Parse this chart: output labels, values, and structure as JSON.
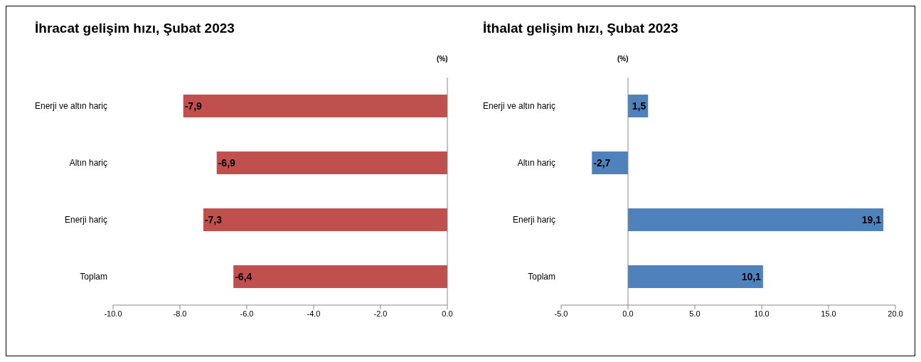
{
  "chart_data": [
    {
      "type": "bar",
      "orientation": "horizontal",
      "title": "İhracat gelişim hızı, Şubat 2023",
      "categories": [
        "Enerji ve altın hariç",
        "Altın hariç",
        "Enerji hariç",
        "Toplam"
      ],
      "values": [
        -7.9,
        -6.9,
        -7.3,
        -6.4
      ],
      "value_labels": [
        "-7,9",
        "-6,9",
        "-7,3",
        "-6,4"
      ],
      "color": "#c0504d",
      "xlim": [
        -10,
        0
      ],
      "xticks": [
        {
          "value": -10,
          "label": "-10.0"
        },
        {
          "value": -8,
          "label": "-8.0"
        },
        {
          "value": -6,
          "label": "-6.0"
        },
        {
          "value": -4,
          "label": "-4.0"
        },
        {
          "value": -2,
          "label": "-2.0"
        },
        {
          "value": 0,
          "label": "0.0"
        }
      ],
      "annotations": [
        "(%)"
      ]
    },
    {
      "type": "bar",
      "orientation": "horizontal",
      "title": "İthalat gelişim hızı, Şubat 2023",
      "categories": [
        "Enerji ve altın hariç",
        "Altın hariç",
        "Enerji hariç",
        "Toplam"
      ],
      "values": [
        1.5,
        -2.7,
        19.1,
        10.1
      ],
      "value_labels": [
        "1,5",
        "-2,7",
        "19,1",
        "10,1"
      ],
      "color": "#4f81bd",
      "xlim": [
        -5,
        20
      ],
      "xticks": [
        {
          "value": -5,
          "label": "-5.0"
        },
        {
          "value": 0,
          "label": "0.0"
        },
        {
          "value": 5,
          "label": "5.0"
        },
        {
          "value": 10,
          "label": "10.0"
        },
        {
          "value": 15,
          "label": "15.0"
        },
        {
          "value": 20,
          "label": "20.0"
        }
      ],
      "annotations": [
        "(%)"
      ]
    }
  ]
}
